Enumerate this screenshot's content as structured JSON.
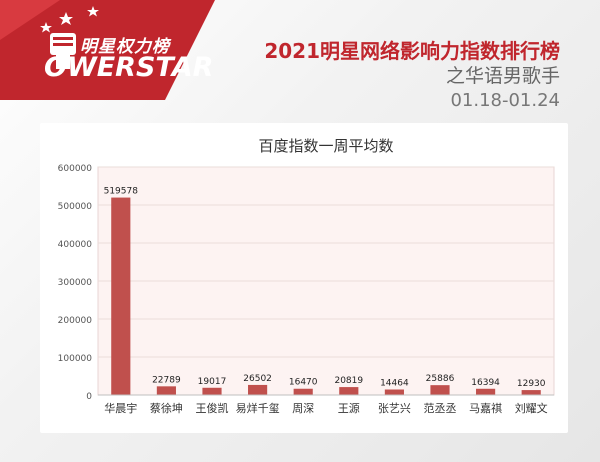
{
  "brand": {
    "name_cn": "明星权力榜",
    "name_en": "OWERSTAR",
    "accent": "#c0262d"
  },
  "header": {
    "title": "2021明星网络影响力指数排行榜",
    "subtitle": "之华语男歌手",
    "date_range": "01.18-01.24"
  },
  "chart_data": {
    "type": "bar",
    "title": "百度指数一周平均数",
    "categories": [
      "华晨宇",
      "蔡徐坤",
      "王俊凯",
      "易烊千玺",
      "周深",
      "王源",
      "张艺兴",
      "范丞丞",
      "马嘉祺",
      "刘耀文"
    ],
    "values": [
      519578,
      22789,
      19017,
      26502,
      16470,
      20819,
      14464,
      25886,
      16394,
      12930
    ],
    "ylim": [
      0,
      600000
    ],
    "yticks": [
      0,
      100000,
      200000,
      300000,
      400000,
      500000,
      600000
    ],
    "grid": true,
    "bar_color": "#c0504d",
    "plot_bg": "#fdf3f2"
  }
}
